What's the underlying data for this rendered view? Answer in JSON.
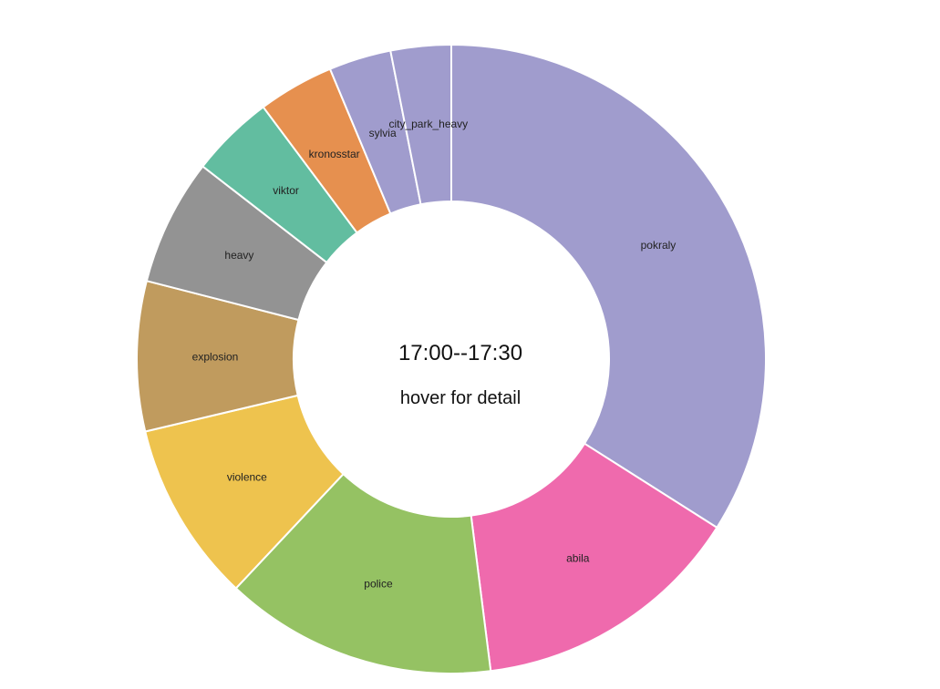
{
  "chart_data": {
    "type": "pie",
    "donut": true,
    "center": {
      "time": "17:00--17:30",
      "hint": "hover for detail"
    },
    "slices": [
      {
        "label": "pokraly",
        "value": 34.0,
        "color": "#a09ccd"
      },
      {
        "label": "abila",
        "value": 14.0,
        "color": "#ef6aad"
      },
      {
        "label": "police",
        "value": 14.0,
        "color": "#95c263"
      },
      {
        "label": "violence",
        "value": 9.3,
        "color": "#eec34e"
      },
      {
        "label": "explosion",
        "value": 7.7,
        "color": "#c09b5e"
      },
      {
        "label": "heavy",
        "value": 6.5,
        "color": "#939393"
      },
      {
        "label": "viktor",
        "value": 4.3,
        "color": "#62bda0"
      },
      {
        "label": "kronosstar",
        "value": 3.9,
        "color": "#e6904f"
      },
      {
        "label": "sylvia",
        "value": 3.2,
        "color": "#a09ccd"
      },
      {
        "label": "city_park_heavy",
        "value": 3.1,
        "color": "#a09ccd"
      }
    ]
  }
}
